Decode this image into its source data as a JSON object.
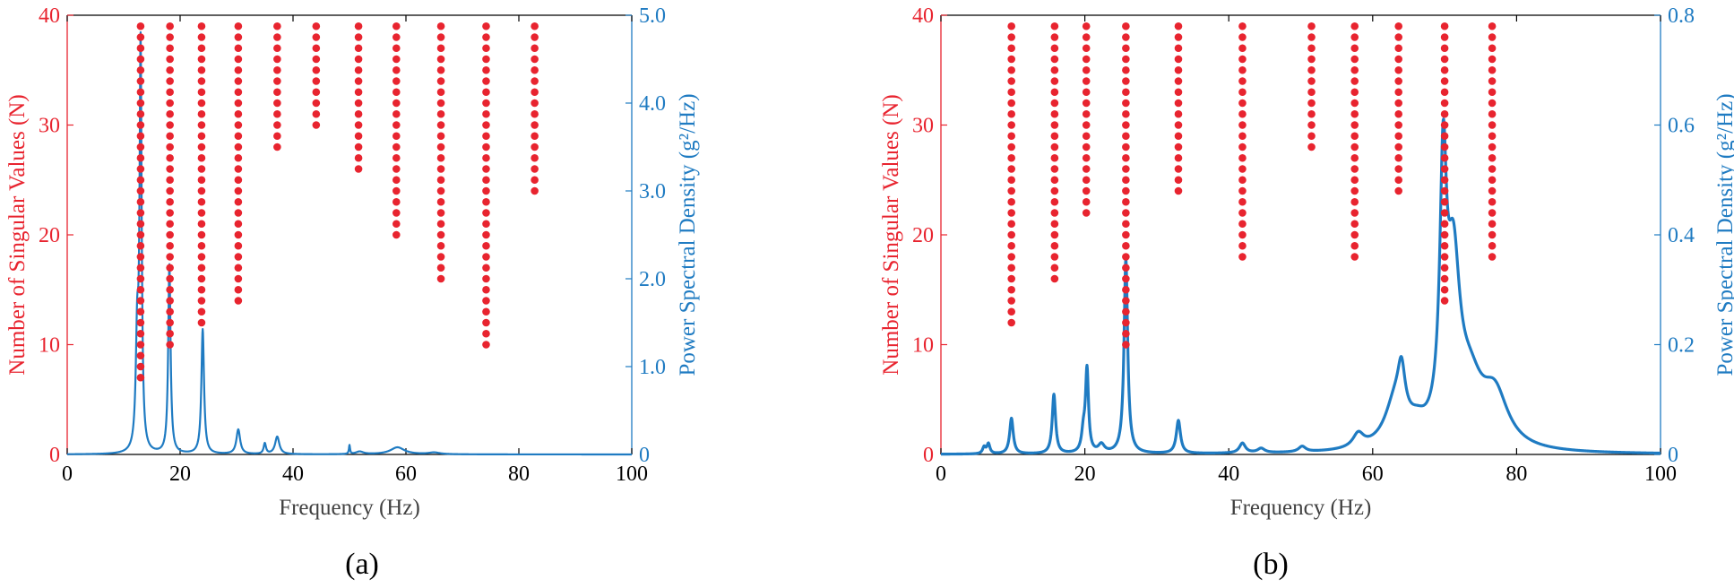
{
  "colors": {
    "left_axis": "#e8242f",
    "right_axis": "#1f7bc2",
    "frame": "#000000"
  },
  "chart_data": [
    {
      "type": "scatter+line",
      "panel": "a",
      "caption": "(a)",
      "xlabel": "Frequency (Hz)",
      "ylabel_left": "Number of Singular Values (N)",
      "ylabel_right": "Power Spectral Density (g²/Hz)",
      "xlim": [
        0,
        100
      ],
      "ylim_left": [
        0,
        40
      ],
      "ylim_right": [
        0,
        5
      ],
      "x_ticks": [
        "0",
        "20",
        "40",
        "60",
        "80",
        "100"
      ],
      "y_left_ticks": [
        "0",
        "10",
        "20",
        "30",
        "40"
      ],
      "y_right_ticks": [
        "0",
        "1.0",
        "2.0",
        "3.0",
        "4.0",
        "5.0"
      ],
      "stable_poles": [
        {
          "freq": 13.0,
          "n_min": 7,
          "n_max": 39
        },
        {
          "freq": 18.2,
          "n_min": 10,
          "n_max": 39
        },
        {
          "freq": 23.8,
          "n_min": 12,
          "n_max": 39
        },
        {
          "freq": 30.3,
          "n_min": 14,
          "n_max": 39
        },
        {
          "freq": 37.2,
          "n_min": 28,
          "n_max": 39
        },
        {
          "freq": 44.1,
          "n_min": 30,
          "n_max": 39
        },
        {
          "freq": 51.6,
          "n_min": 26,
          "n_max": 39
        },
        {
          "freq": 58.3,
          "n_min": 20,
          "n_max": 39
        },
        {
          "freq": 66.2,
          "n_min": 16,
          "n_max": 39
        },
        {
          "freq": 74.2,
          "n_min": 10,
          "n_max": 39
        },
        {
          "freq": 82.8,
          "n_min": 24,
          "n_max": 39
        }
      ],
      "psd_peaks": [
        {
          "freq": 12.4,
          "amp": 1.25,
          "width": 0.3
        },
        {
          "freq": 13.0,
          "amp": 4.55,
          "width": 0.22
        },
        {
          "freq": 18.1,
          "amp": 2.15,
          "width": 0.25
        },
        {
          "freq": 24.0,
          "amp": 1.42,
          "width": 0.28
        },
        {
          "freq": 30.3,
          "amp": 0.28,
          "width": 0.4
        },
        {
          "freq": 35.0,
          "amp": 0.12,
          "width": 0.25
        },
        {
          "freq": 37.2,
          "amp": 0.2,
          "width": 0.45
        },
        {
          "freq": 50.0,
          "amp": 0.1,
          "width": 0.12
        },
        {
          "freq": 51.8,
          "amp": 0.03,
          "width": 0.8
        },
        {
          "freq": 58.5,
          "amp": 0.08,
          "width": 1.5
        },
        {
          "freq": 65.0,
          "amp": 0.02,
          "width": 1.2
        }
      ],
      "psd_line_width": 2.2
    },
    {
      "type": "scatter+line",
      "panel": "b",
      "caption": "(b)",
      "xlabel": "Frequency (Hz)",
      "ylabel_left": "Number of Singular Values (N)",
      "ylabel_right": "Power Spectral Density (g²/Hz)",
      "xlim": [
        0,
        100
      ],
      "ylim_left": [
        0,
        40
      ],
      "ylim_right": [
        0,
        0.8
      ],
      "x_ticks": [
        "0",
        "20",
        "40",
        "60",
        "80",
        "100"
      ],
      "y_left_ticks": [
        "0",
        "10",
        "20",
        "30",
        "40"
      ],
      "y_right_ticks": [
        "0",
        "0.2",
        "0.4",
        "0.6",
        "0.8"
      ],
      "stable_poles": [
        {
          "freq": 9.8,
          "n_min": 12,
          "n_max": 39
        },
        {
          "freq": 15.8,
          "n_min": 16,
          "n_max": 39
        },
        {
          "freq": 20.2,
          "n_min": 22,
          "n_max": 39
        },
        {
          "freq": 25.7,
          "n_min": 10,
          "n_max": 39
        },
        {
          "freq": 33.0,
          "n_min": 24,
          "n_max": 39
        },
        {
          "freq": 41.9,
          "n_min": 18,
          "n_max": 39
        },
        {
          "freq": 51.5,
          "n_min": 28,
          "n_max": 39
        },
        {
          "freq": 57.5,
          "n_min": 18,
          "n_max": 39
        },
        {
          "freq": 63.6,
          "n_min": 24,
          "n_max": 39
        },
        {
          "freq": 70.0,
          "n_min": 14,
          "n_max": 39
        },
        {
          "freq": 76.6,
          "n_min": 18,
          "n_max": 39
        }
      ],
      "psd_peaks": [
        {
          "freq": 6.0,
          "amp": 0.012,
          "width": 0.25
        },
        {
          "freq": 6.6,
          "amp": 0.018,
          "width": 0.25
        },
        {
          "freq": 9.8,
          "amp": 0.065,
          "width": 0.3
        },
        {
          "freq": 15.7,
          "amp": 0.108,
          "width": 0.28
        },
        {
          "freq": 19.8,
          "amp": 0.035,
          "width": 0.3
        },
        {
          "freq": 20.3,
          "amp": 0.15,
          "width": 0.25
        },
        {
          "freq": 22.3,
          "amp": 0.015,
          "width": 0.5
        },
        {
          "freq": 25.7,
          "amp": 0.355,
          "width": 0.3
        },
        {
          "freq": 33.0,
          "amp": 0.06,
          "width": 0.35
        },
        {
          "freq": 41.9,
          "amp": 0.018,
          "width": 0.5
        },
        {
          "freq": 44.5,
          "amp": 0.008,
          "width": 0.6
        },
        {
          "freq": 50.2,
          "amp": 0.01,
          "width": 0.6
        },
        {
          "freq": 58.0,
          "amp": 0.025,
          "width": 0.9
        },
        {
          "freq": 63.2,
          "amp": 0.085,
          "width": 1.8
        },
        {
          "freq": 64.0,
          "amp": 0.08,
          "width": 0.6
        },
        {
          "freq": 66.2,
          "amp": 0.025,
          "width": 1.5
        },
        {
          "freq": 69.8,
          "amp": 0.45,
          "width": 0.55
        },
        {
          "freq": 71.2,
          "amp": 0.3,
          "width": 1.1
        },
        {
          "freq": 73.5,
          "amp": 0.1,
          "width": 2.2
        },
        {
          "freq": 77.0,
          "amp": 0.092,
          "width": 2.2
        }
      ],
      "psd_line_width": 3.2
    }
  ]
}
